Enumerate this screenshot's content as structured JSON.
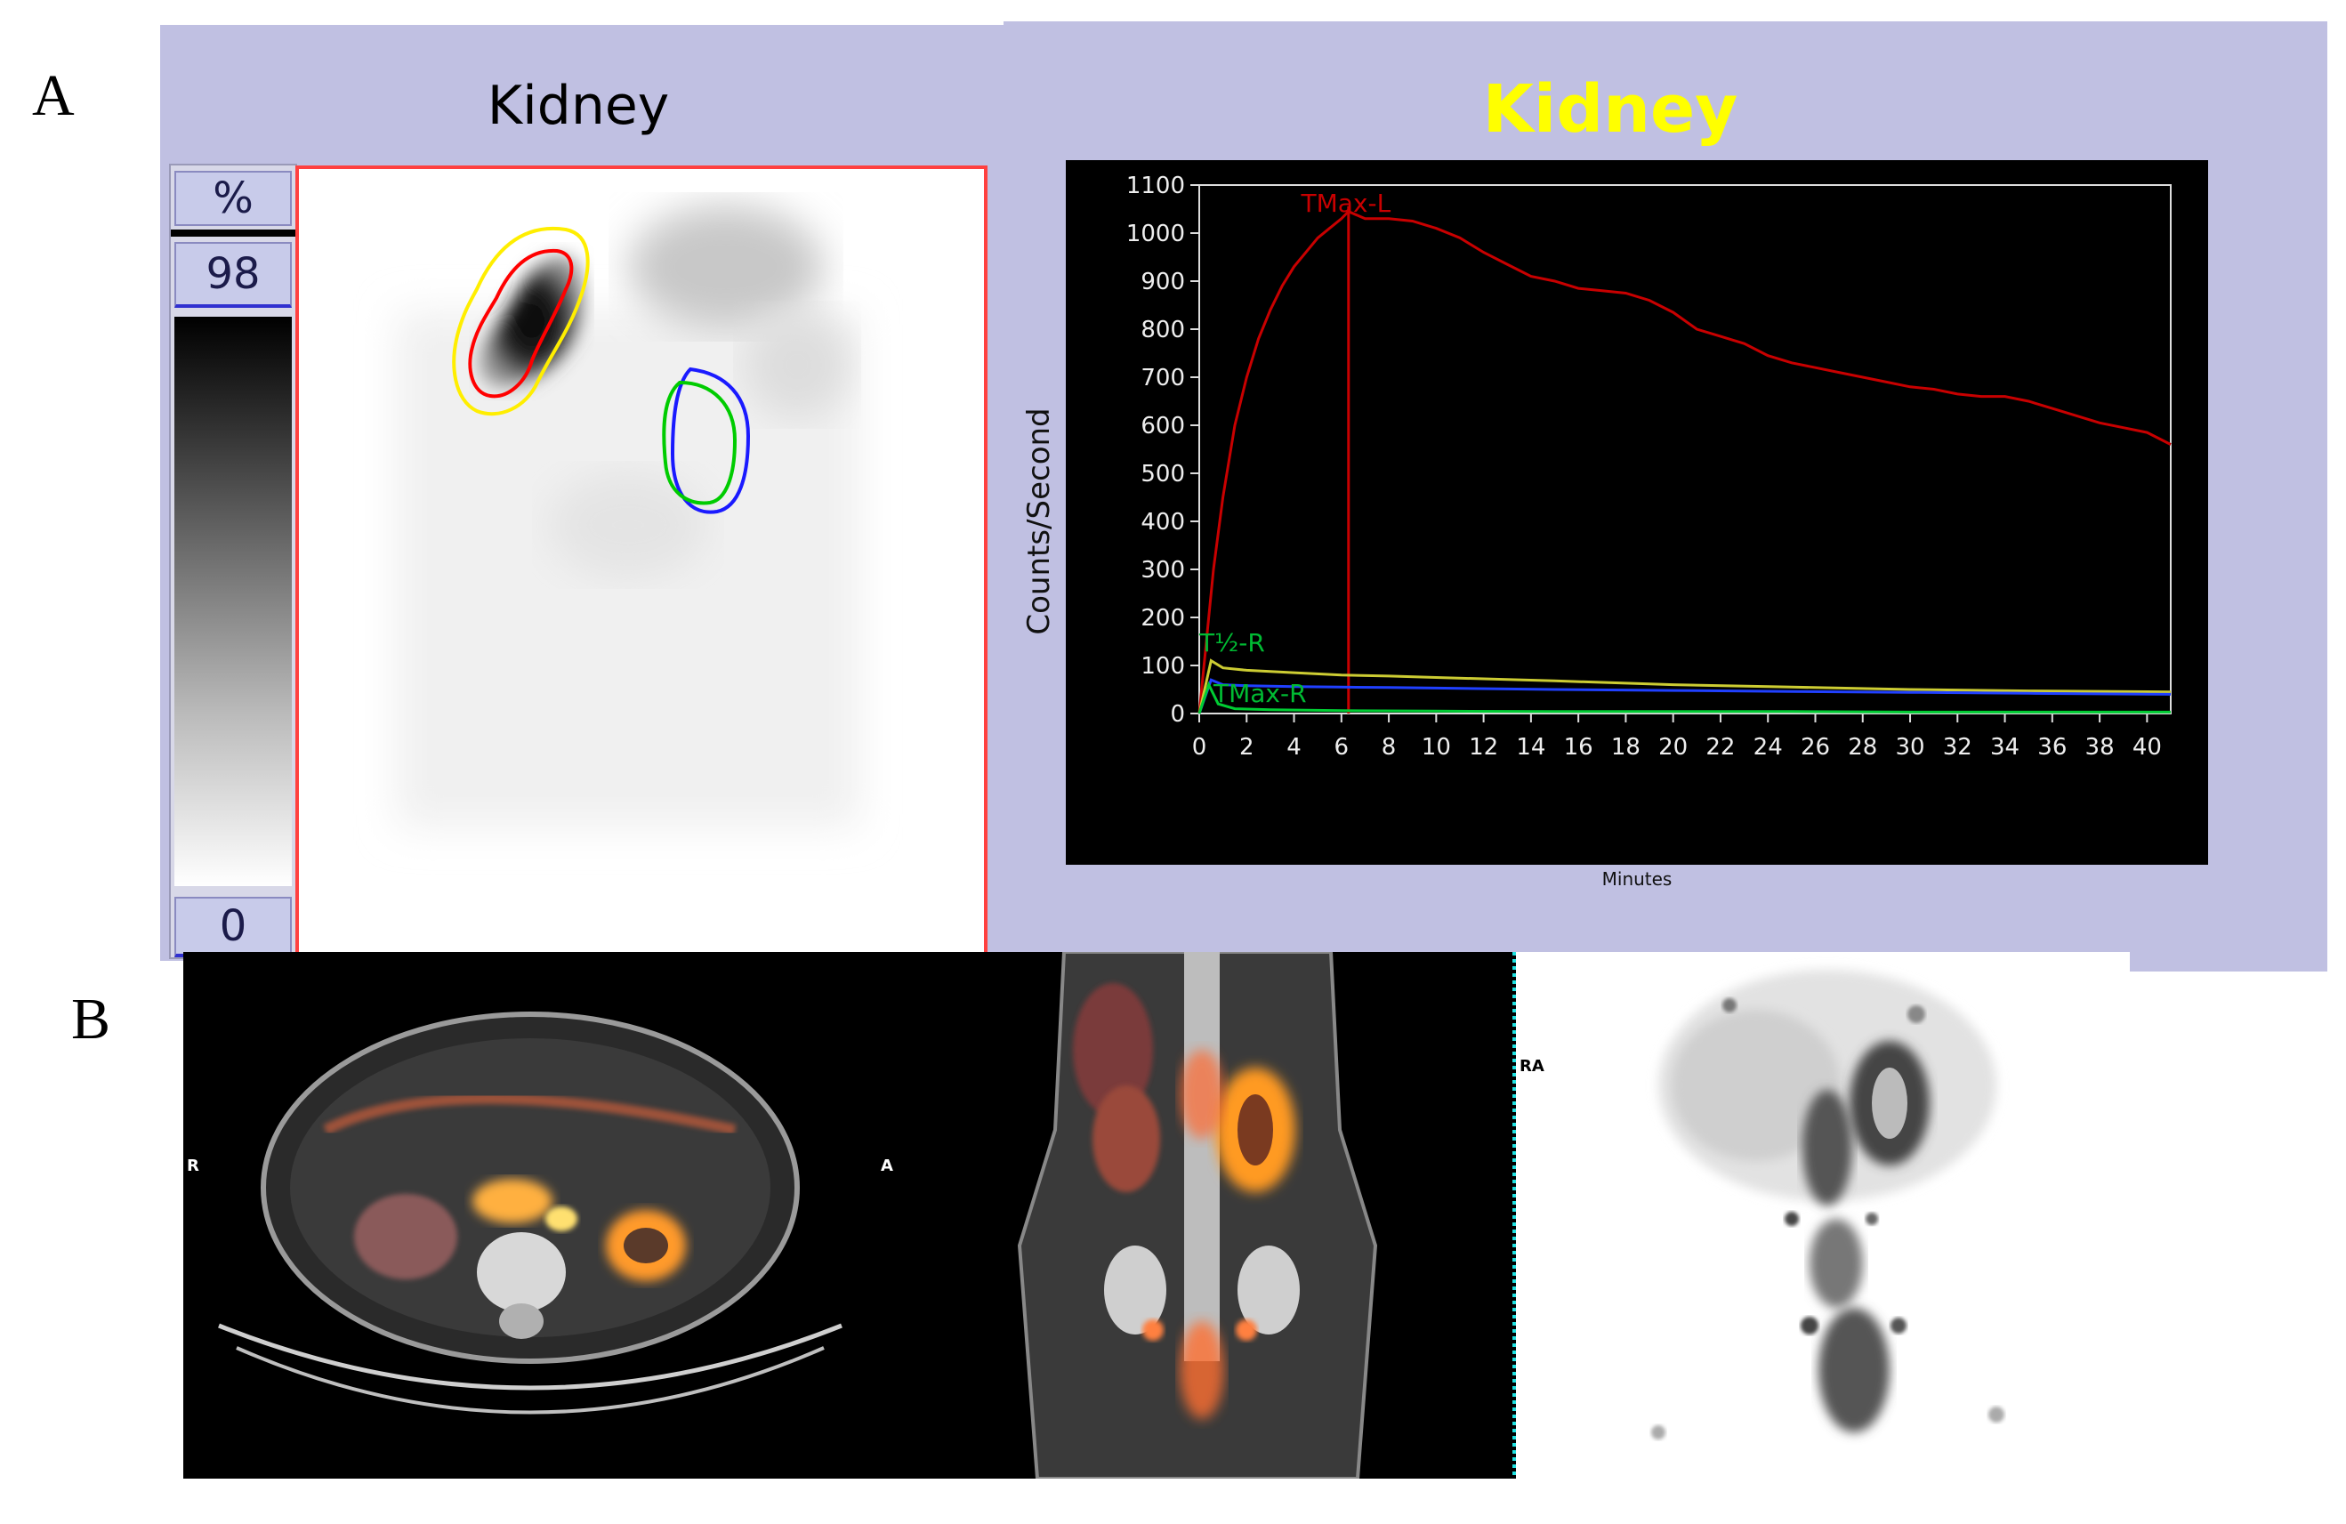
{
  "panels": {
    "a_label": "A",
    "b_label": "B"
  },
  "left_view": {
    "title": "Kidney",
    "scale_unit": "%",
    "scale_max": "98",
    "scale_min": "0"
  },
  "right_view": {
    "title": "Kidney"
  },
  "chart_data": {
    "type": "line",
    "title": "Kidney",
    "xlabel": "Minutes",
    "ylabel": "Counts/Second",
    "xlim": [
      0,
      41
    ],
    "ylim": [
      0,
      1100
    ],
    "x_ticks": [
      "0",
      "2",
      "4",
      "6",
      "8",
      "10",
      "12",
      "14",
      "16",
      "18",
      "20",
      "22",
      "24",
      "26",
      "28",
      "30",
      "32",
      "34",
      "36",
      "38",
      "40"
    ],
    "y_ticks": [
      "0",
      "100",
      "200",
      "300",
      "400",
      "500",
      "600",
      "700",
      "800",
      "900",
      "1000",
      "1100"
    ],
    "series": [
      {
        "color": "#c80000",
        "x": [
          0,
          0.3,
          0.6,
          1,
          1.5,
          2,
          2.5,
          3,
          3.5,
          4,
          4.5,
          5,
          5.5,
          6,
          6.3,
          7,
          8,
          9,
          10,
          11,
          12,
          13,
          14,
          15,
          16,
          17,
          18,
          19,
          20,
          21,
          22,
          23,
          24,
          25,
          26,
          27,
          28,
          29,
          30,
          31,
          32,
          33,
          34,
          35,
          36,
          37,
          38,
          39,
          40,
          41
        ],
        "y": [
          0,
          150,
          300,
          450,
          600,
          700,
          780,
          840,
          890,
          930,
          960,
          990,
          1010,
          1030,
          1045,
          1030,
          1030,
          1025,
          1010,
          990,
          960,
          935,
          910,
          900,
          885,
          880,
          875,
          860,
          835,
          800,
          785,
          770,
          745,
          730,
          720,
          710,
          700,
          690,
          680,
          675,
          665,
          660,
          660,
          650,
          635,
          620,
          605,
          595,
          585,
          560
        ]
      },
      {
        "color": "#cccc33",
        "x": [
          0,
          0.5,
          1,
          2,
          4,
          6,
          8,
          10,
          15,
          20,
          25,
          30,
          35,
          41
        ],
        "y": [
          0,
          110,
          95,
          90,
          85,
          80,
          78,
          75,
          68,
          60,
          55,
          50,
          47,
          45
        ]
      },
      {
        "color": "#2040ff",
        "x": [
          0,
          0.5,
          1,
          2,
          4,
          6,
          8,
          10,
          15,
          20,
          25,
          30,
          35,
          41
        ],
        "y": [
          0,
          70,
          60,
          58,
          56,
          55,
          54,
          53,
          50,
          48,
          46,
          44,
          42,
          40
        ]
      },
      {
        "color": "#00cc33",
        "x": [
          0,
          0.4,
          0.8,
          1.5,
          3,
          6,
          10,
          15,
          20,
          25,
          30,
          35,
          41
        ],
        "y": [
          0,
          60,
          20,
          10,
          8,
          6,
          5,
          4,
          4,
          4,
          3,
          3,
          3
        ]
      }
    ],
    "annotations": [
      {
        "text": "TMax-L",
        "x": 4.3,
        "y": 1100,
        "color": "#c80000"
      },
      {
        "text": "T½-R",
        "x": 0,
        "y": 185,
        "color": "#00bb33"
      },
      {
        "text": "TMax-R",
        "x": 0.6,
        "y": 80,
        "color": "#00bb33"
      }
    ],
    "vline": {
      "x": 6.3,
      "color": "#c80000"
    }
  },
  "ct_views": {
    "axial_orientation": "R",
    "coronal_orientation": "A",
    "mip_orientation": "RA"
  }
}
